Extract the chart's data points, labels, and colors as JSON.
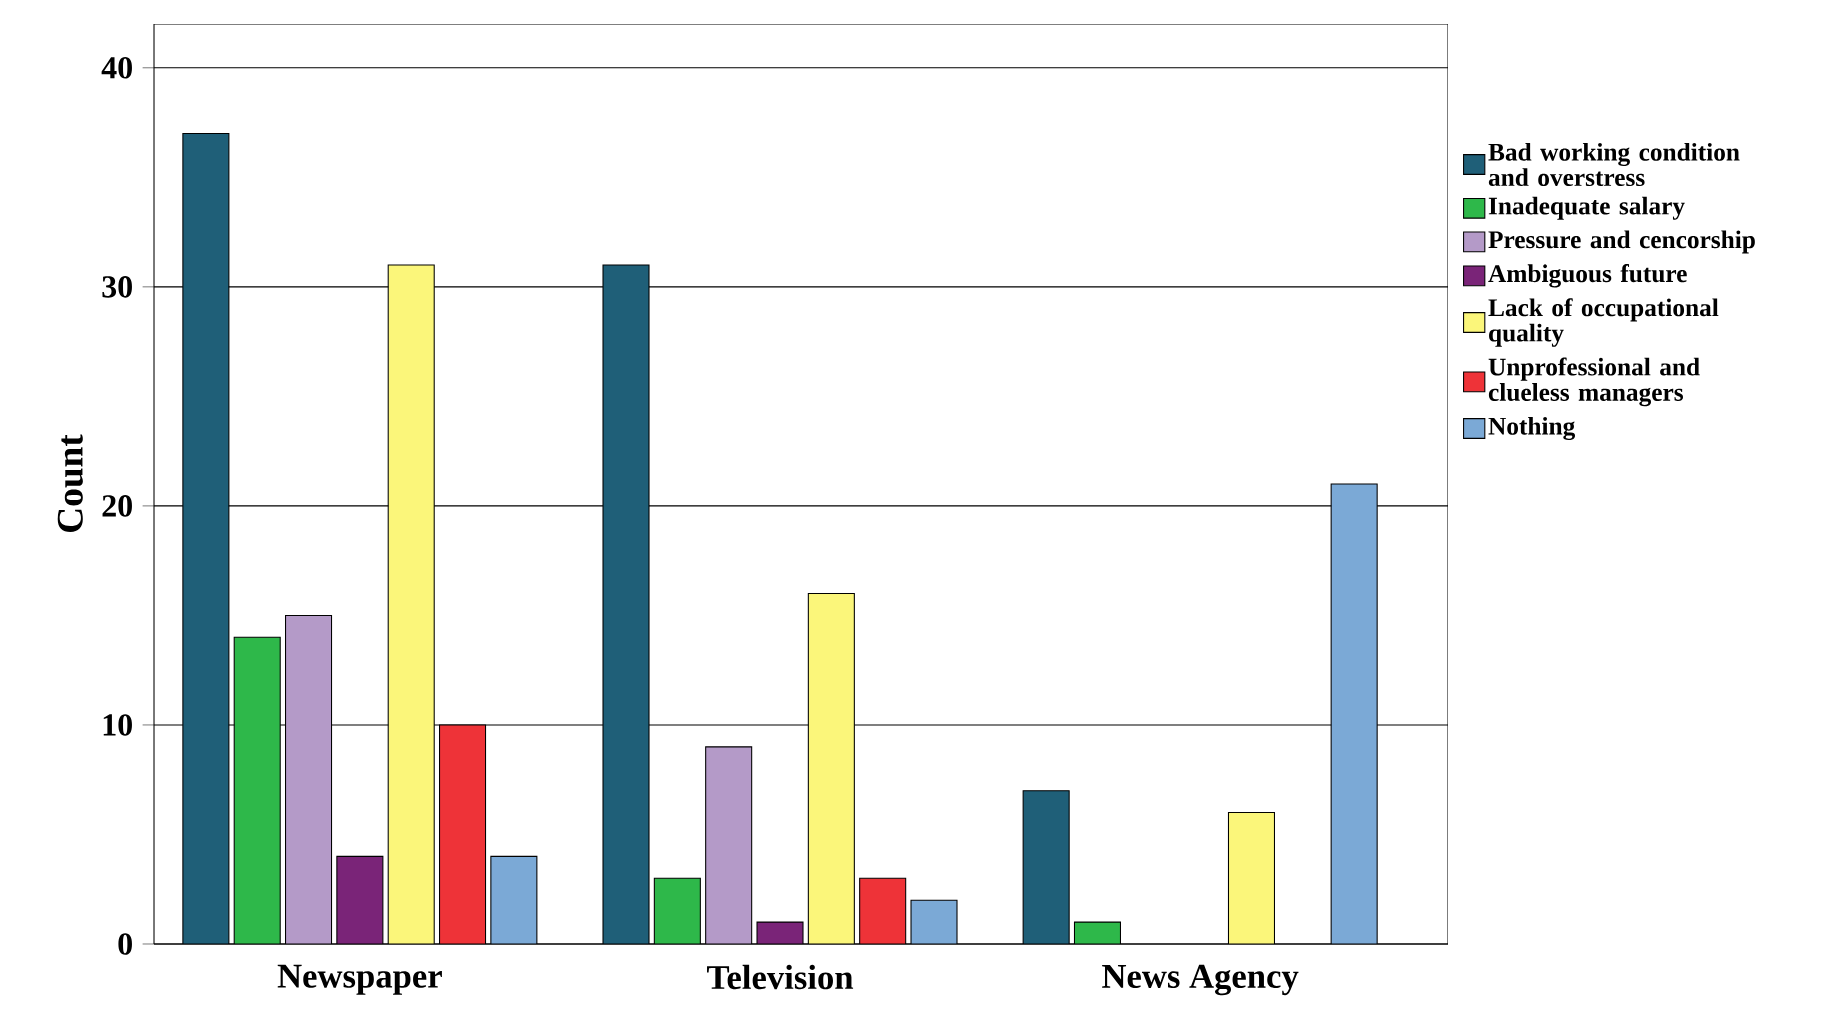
{
  "chart_data": {
    "type": "bar",
    "ylabel": "Count",
    "categories": [
      "Newspaper",
      "Television",
      "News Agency"
    ],
    "series": [
      {
        "name": "Bad working condition and overstress",
        "color": "#1f5f78",
        "values": [
          37,
          31,
          7
        ]
      },
      {
        "name": "Inadequate salary",
        "color": "#2eb84a",
        "values": [
          14,
          3,
          1
        ]
      },
      {
        "name": "Pressure and cencorship",
        "color": "#b49ac8",
        "values": [
          15,
          9,
          0
        ]
      },
      {
        "name": "Ambiguous future",
        "color": "#7a2478",
        "values": [
          4,
          1,
          0
        ]
      },
      {
        "name": "Lack of occupational quality",
        "color": "#fbf67a",
        "values": [
          31,
          16,
          6
        ]
      },
      {
        "name": "Unprofessional and clueless managers",
        "color": "#ee3338",
        "values": [
          10,
          3,
          0
        ]
      },
      {
        "name": "Nothing",
        "color": "#7ba9d6",
        "values": [
          4,
          2,
          21
        ]
      }
    ],
    "ylim": [
      0,
      42
    ],
    "yticks": [
      0,
      10,
      20,
      30,
      40
    ],
    "grid": "y",
    "legend": "right"
  }
}
